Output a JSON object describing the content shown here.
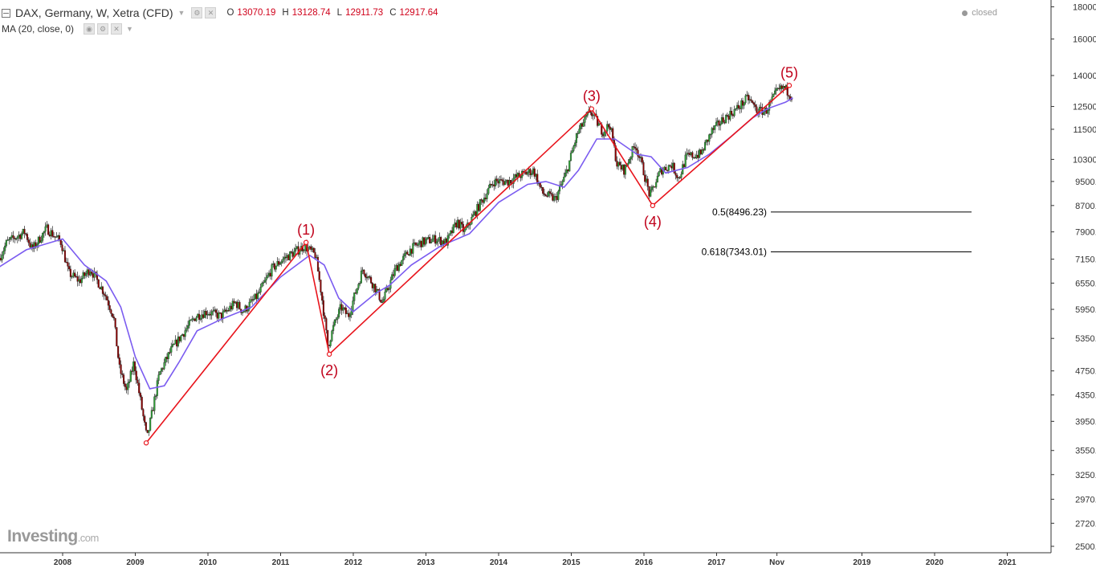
{
  "header": {
    "symbol": "DAX, Germany, W, Xetra (CFD)",
    "open_label": "O",
    "open": "13070.19",
    "high_label": "H",
    "high": "13128.74",
    "low_label": "L",
    "low": "12911.73",
    "close_label": "C",
    "close": "12917.64",
    "indicator": "MA (20, close, 0)",
    "status": "closed"
  },
  "logo": {
    "main": "Investing",
    "suffix": ".com"
  },
  "colors": {
    "up": "#2e9e36",
    "down": "#8b0000",
    "ma": "#7b5cf0",
    "wave": "#e8141c",
    "wave_label": "#c0001a",
    "price_value": "#d0021b"
  },
  "chart_data": {
    "type": "candlestick",
    "scale": "log",
    "y_ticks": [
      "18000.00",
      "16000.00",
      "14000.00",
      "12500.00",
      "11500.00",
      "10300.00",
      "9500.00",
      "8700.00",
      "7900.00",
      "7150.00",
      "6550.00",
      "5950.00",
      "5350.00",
      "4750.00",
      "4350.00",
      "3950.00",
      "3550.00",
      "3250.00",
      "2970.00",
      "2720.00",
      "2500.00"
    ],
    "x_ticks": [
      {
        "label": "2008",
        "t": 2008.0
      },
      {
        "label": "2009",
        "t": 2009.0
      },
      {
        "label": "2010",
        "t": 2010.0
      },
      {
        "label": "2011",
        "t": 2011.0
      },
      {
        "label": "2012",
        "t": 2012.0
      },
      {
        "label": "2013",
        "t": 2013.0
      },
      {
        "label": "2014",
        "t": 2014.0
      },
      {
        "label": "2015",
        "t": 2015.0
      },
      {
        "label": "2016",
        "t": 2016.0
      },
      {
        "label": "2017",
        "t": 2017.0
      },
      {
        "label": "Nov",
        "t": 2017.83
      },
      {
        "label": "2019",
        "t": 2019.0
      },
      {
        "label": "2020",
        "t": 2020.0
      },
      {
        "label": "2021",
        "t": 2021.0
      }
    ],
    "price_path": [
      [
        2007.0,
        6600
      ],
      [
        2007.25,
        7600
      ],
      [
        2007.5,
        7900
      ],
      [
        2007.6,
        7400
      ],
      [
        2007.8,
        8000
      ],
      [
        2008.0,
        7600
      ],
      [
        2008.1,
        6800
      ],
      [
        2008.25,
        6600
      ],
      [
        2008.4,
        6900
      ],
      [
        2008.6,
        6300
      ],
      [
        2008.72,
        5800
      ],
      [
        2008.8,
        4800
      ],
      [
        2008.9,
        4400
      ],
      [
        2009.0,
        4900
      ],
      [
        2009.1,
        4200
      ],
      [
        2009.18,
        3700
      ],
      [
        2009.35,
        4700
      ],
      [
        2009.5,
        5100
      ],
      [
        2009.7,
        5500
      ],
      [
        2009.85,
        5800
      ],
      [
        2010.0,
        5900
      ],
      [
        2010.2,
        5800
      ],
      [
        2010.4,
        6100
      ],
      [
        2010.5,
        5900
      ],
      [
        2010.7,
        6250
      ],
      [
        2010.9,
        6900
      ],
      [
        2011.05,
        7150
      ],
      [
        2011.35,
        7500
      ],
      [
        2011.5,
        7250
      ],
      [
        2011.58,
        6300
      ],
      [
        2011.67,
        5200
      ],
      [
        2011.75,
        5600
      ],
      [
        2011.85,
        6000
      ],
      [
        2011.95,
        5800
      ],
      [
        2012.15,
        6900
      ],
      [
        2012.3,
        6500
      ],
      [
        2012.42,
        6100
      ],
      [
        2012.6,
        6900
      ],
      [
        2012.8,
        7400
      ],
      [
        2012.95,
        7600
      ],
      [
        2013.15,
        7700
      ],
      [
        2013.3,
        7600
      ],
      [
        2013.45,
        8200
      ],
      [
        2013.55,
        7900
      ],
      [
        2013.75,
        8700
      ],
      [
        2013.95,
        9500
      ],
      [
        2014.15,
        9500
      ],
      [
        2014.3,
        9700
      ],
      [
        2014.5,
        9900
      ],
      [
        2014.62,
        9100
      ],
      [
        2014.8,
        8900
      ],
      [
        2014.95,
        9800
      ],
      [
        2015.1,
        11300
      ],
      [
        2015.28,
        12300
      ],
      [
        2015.45,
        11400
      ],
      [
        2015.55,
        11700
      ],
      [
        2015.65,
        10100
      ],
      [
        2015.75,
        9900
      ],
      [
        2015.9,
        10900
      ],
      [
        2016.0,
        10000
      ],
      [
        2016.1,
        9000
      ],
      [
        2016.25,
        9900
      ],
      [
        2016.4,
        10100
      ],
      [
        2016.5,
        9600
      ],
      [
        2016.6,
        10400
      ],
      [
        2016.8,
        10500
      ],
      [
        2016.95,
        11400
      ],
      [
        2017.1,
        11900
      ],
      [
        2017.3,
        12400
      ],
      [
        2017.45,
        12900
      ],
      [
        2017.58,
        12300
      ],
      [
        2017.7,
        12300
      ],
      [
        2017.85,
        13200
      ],
      [
        2017.95,
        13400
      ],
      [
        2018.05,
        13000
      ]
    ],
    "ma": {
      "label": "MA (20, close, 0)",
      "path": [
        [
          2007.0,
          6800
        ],
        [
          2007.5,
          7400
        ],
        [
          2008.0,
          7700
        ],
        [
          2008.3,
          7000
        ],
        [
          2008.6,
          6600
        ],
        [
          2008.8,
          6000
        ],
        [
          2009.0,
          5000
        ],
        [
          2009.2,
          4450
        ],
        [
          2009.4,
          4500
        ],
        [
          2009.6,
          4900
        ],
        [
          2009.85,
          5500
        ],
        [
          2010.2,
          5750
        ],
        [
          2010.6,
          6000
        ],
        [
          2011.0,
          6700
        ],
        [
          2011.4,
          7250
        ],
        [
          2011.6,
          7000
        ],
        [
          2011.8,
          6200
        ],
        [
          2012.0,
          5900
        ],
        [
          2012.3,
          6300
        ],
        [
          2012.5,
          6500
        ],
        [
          2012.8,
          7000
        ],
        [
          2013.2,
          7500
        ],
        [
          2013.6,
          7850
        ],
        [
          2014.0,
          8800
        ],
        [
          2014.4,
          9400
        ],
        [
          2014.65,
          9500
        ],
        [
          2014.9,
          9300
        ],
        [
          2015.1,
          9900
        ],
        [
          2015.35,
          11100
        ],
        [
          2015.6,
          11100
        ],
        [
          2015.9,
          10500
        ],
        [
          2016.1,
          10400
        ],
        [
          2016.3,
          9800
        ],
        [
          2016.6,
          10000
        ],
        [
          2016.9,
          10500
        ],
        [
          2017.2,
          11200
        ],
        [
          2017.5,
          12000
        ],
        [
          2017.7,
          12400
        ],
        [
          2017.95,
          12700
        ],
        [
          2018.05,
          12900
        ]
      ]
    },
    "elliott_wave": [
      {
        "label": "",
        "t": 2009.15,
        "v": 3650
      },
      {
        "label": "(1)",
        "t": 2011.35,
        "v": 7600
      },
      {
        "label": "(2)",
        "t": 2011.67,
        "v": 5050
      },
      {
        "label": "(3)",
        "t": 2015.28,
        "v": 12390
      },
      {
        "label": "(4)",
        "t": 2016.12,
        "v": 8700
      },
      {
        "label": "(5)",
        "t": 2018.0,
        "v": 13500
      }
    ],
    "fib_levels": [
      {
        "label": "0.5(8496.23)",
        "value": 8496.23
      },
      {
        "label": "0.618(7343.01)",
        "value": 7343.01
      }
    ]
  }
}
